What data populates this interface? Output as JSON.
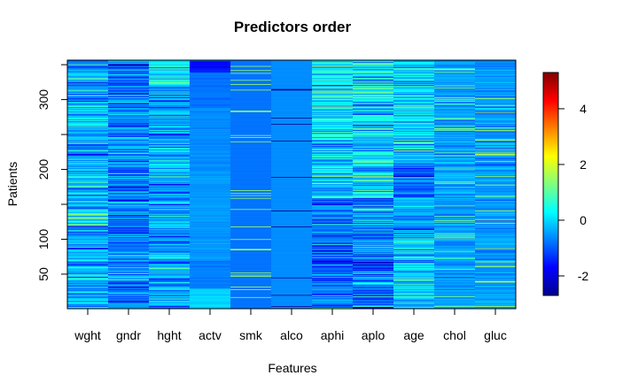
{
  "chart_data": {
    "type": "heatmap",
    "title": "Predictors order",
    "xlabel": "Features",
    "ylabel": "Patients",
    "categories": [
      "wght",
      "gndr",
      "hght",
      "actv",
      "smk",
      "alco",
      "aphi",
      "aplo",
      "age",
      "chol",
      "gluc"
    ],
    "y_ticks": [
      50,
      100,
      200,
      300
    ],
    "y_tick_labels": [
      "50",
      "100",
      "200",
      "300"
    ],
    "y_minor_ticks": [
      150,
      250,
      350
    ],
    "ylim": [
      1,
      356
    ],
    "n_patients": 356,
    "colorbar": {
      "ticks": [
        -2,
        0,
        2,
        4
      ],
      "tick_labels": [
        "-2",
        "0",
        "2",
        "4"
      ],
      "range": [
        -2.7,
        5.3
      ],
      "colormap": "jet"
    },
    "columns": [
      {
        "name": "wght",
        "base": -0.4,
        "variation": 1.5,
        "patches": [
          [
            8,
            60,
            -0.3
          ],
          [
            60,
            120,
            -0.5
          ],
          [
            120,
            200,
            -0.1
          ],
          [
            200,
            300,
            -0.3
          ],
          [
            300,
            356,
            -0.5
          ]
        ]
      },
      {
        "name": "gndr",
        "base": -0.7,
        "variation": 1.3,
        "patches": [
          [
            1,
            40,
            -0.8
          ],
          [
            40,
            90,
            -0.5
          ],
          [
            90,
            200,
            -0.9
          ],
          [
            200,
            250,
            -0.6
          ],
          [
            250,
            320,
            -0.7
          ],
          [
            320,
            356,
            -1.0
          ]
        ]
      },
      {
        "name": "hght",
        "base": -0.3,
        "variation": 1.3,
        "patches": [
          [
            1,
            60,
            -0.4
          ],
          [
            60,
            180,
            -0.5
          ],
          [
            180,
            230,
            -0.3
          ],
          [
            230,
            320,
            -0.5
          ],
          [
            320,
            356,
            0.2
          ]
        ]
      },
      {
        "name": "actv",
        "base": -0.7,
        "variation": 0.2,
        "patches": [
          [
            1,
            30,
            0.0
          ],
          [
            30,
            70,
            -0.7
          ],
          [
            70,
            200,
            -0.5
          ],
          [
            200,
            290,
            -0.6
          ],
          [
            290,
            340,
            -0.8
          ],
          [
            340,
            356,
            -1.6
          ]
        ]
      },
      {
        "name": "smk",
        "base": -0.8,
        "variation": 0.0,
        "rare": {
          "value": 1.5,
          "rate": 0.1
        }
      },
      {
        "name": "alco",
        "base": -0.6,
        "variation": 0.0,
        "rare": {
          "value": -2.6,
          "rate": 0.025
        }
      },
      {
        "name": "aphi",
        "base": -0.4,
        "variation": 1.6,
        "patches": [
          [
            1,
            90,
            -0.9
          ],
          [
            90,
            160,
            -0.8
          ],
          [
            160,
            230,
            0.0
          ],
          [
            230,
            300,
            -0.1
          ],
          [
            300,
            356,
            0.2
          ]
        ]
      },
      {
        "name": "aplo",
        "base": -0.3,
        "variation": 1.6,
        "patches": [
          [
            1,
            90,
            -0.8
          ],
          [
            90,
            160,
            -0.7
          ],
          [
            160,
            230,
            0.0
          ],
          [
            230,
            300,
            0.0
          ],
          [
            300,
            356,
            0.3
          ]
        ]
      },
      {
        "name": "age",
        "base": -0.2,
        "variation": 1.3,
        "patches": [
          [
            1,
            100,
            0.0
          ],
          [
            100,
            160,
            -0.3
          ],
          [
            160,
            210,
            -1.0
          ],
          [
            210,
            300,
            0.0
          ],
          [
            300,
            356,
            -0.1
          ]
        ]
      },
      {
        "name": "chol",
        "base": -0.5,
        "variation": 0.6,
        "rare": {
          "value": 1.2,
          "rate": 0.08
        }
      },
      {
        "name": "gluc",
        "base": -0.5,
        "variation": 0.6,
        "rare": {
          "value": 1.7,
          "rate": 0.08
        }
      }
    ]
  }
}
